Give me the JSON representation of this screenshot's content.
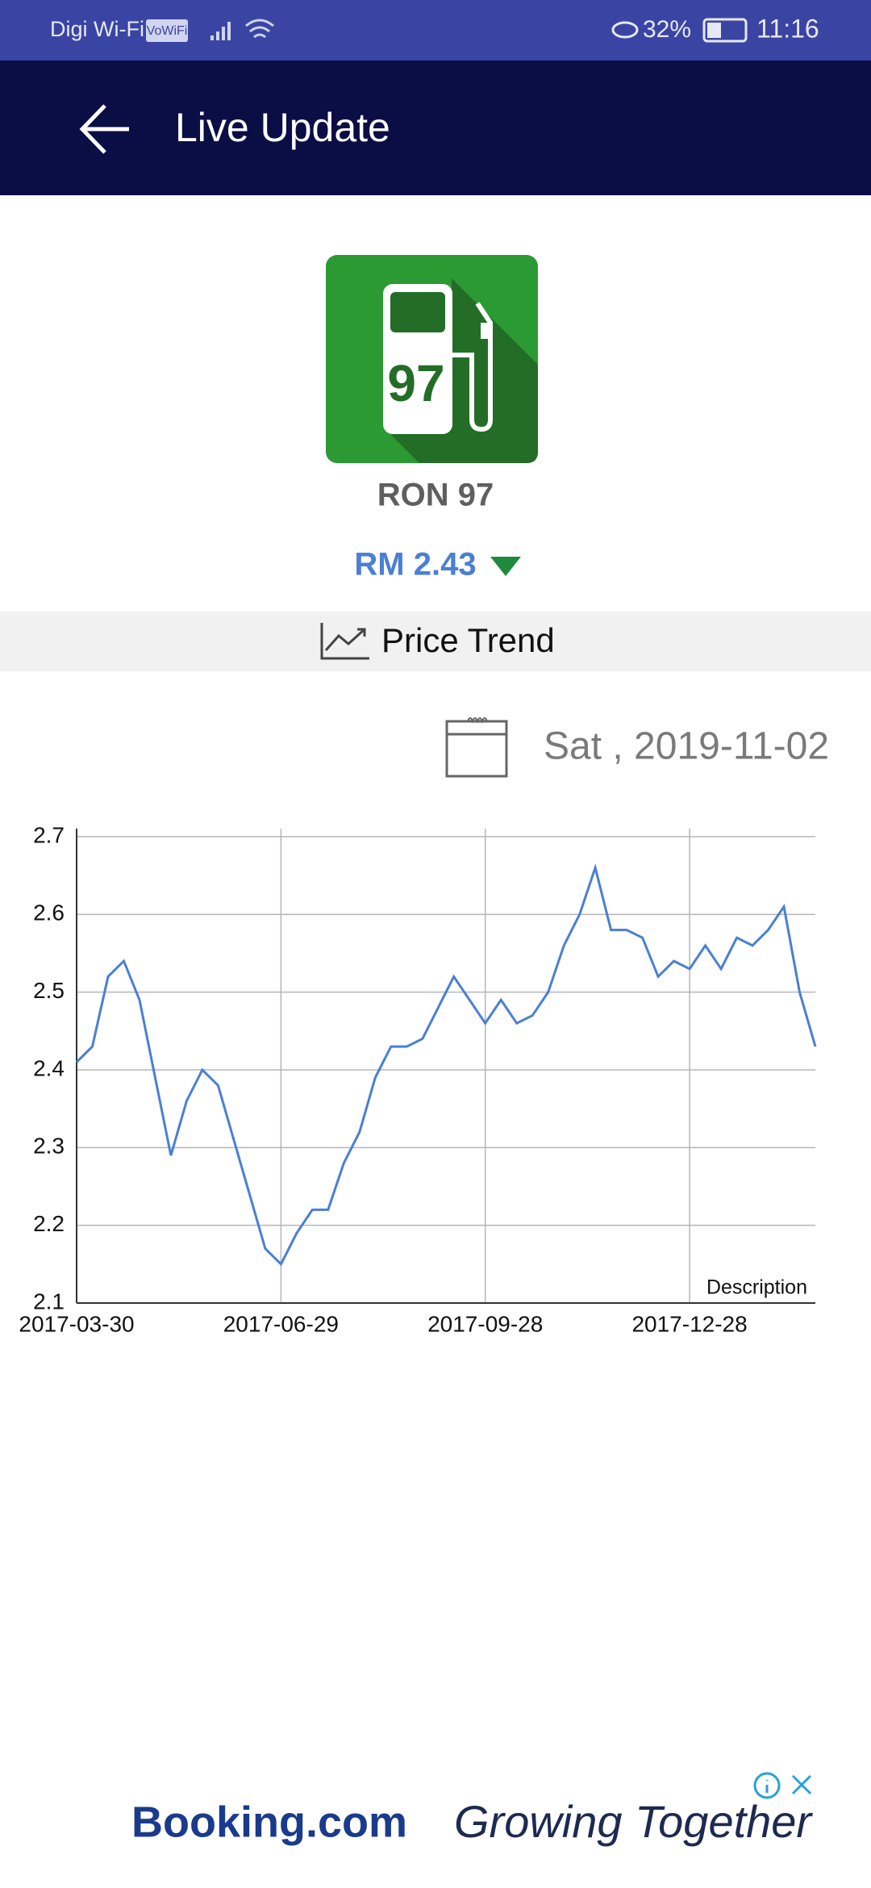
{
  "status_bar": {
    "carrier": "Digi Wi-Fi",
    "vowifi": "VoWiFi",
    "battery": "32%",
    "time": "11:16"
  },
  "app_bar": {
    "title": "Live Update"
  },
  "fuel": {
    "icon_label": "97",
    "name": "RON 97",
    "price": "RM 2.43"
  },
  "trend": {
    "label": "Price Trend",
    "date": "Sat , 2019-11-02"
  },
  "chart_data": {
    "type": "line",
    "description": "Description",
    "categories": [
      "2017-03-30",
      null,
      null,
      null,
      null,
      null,
      null,
      null,
      null,
      null,
      null,
      null,
      null,
      "2017-06-29",
      null,
      null,
      null,
      null,
      null,
      null,
      null,
      null,
      null,
      null,
      null,
      null,
      "2017-09-28",
      null,
      null,
      null,
      null,
      null,
      null,
      null,
      null,
      null,
      null,
      null,
      null,
      "2017-12-28",
      null,
      null,
      null,
      null,
      null,
      null,
      null,
      null
    ],
    "values": [
      2.41,
      2.43,
      2.52,
      2.54,
      2.49,
      2.39,
      2.29,
      2.36,
      2.4,
      2.38,
      2.31,
      2.24,
      2.17,
      2.15,
      2.19,
      2.22,
      2.22,
      2.28,
      2.32,
      2.39,
      2.43,
      2.43,
      2.44,
      2.48,
      2.52,
      2.49,
      2.46,
      2.49,
      2.46,
      2.47,
      2.5,
      2.56,
      2.6,
      2.66,
      2.58,
      2.58,
      2.57,
      2.52,
      2.54,
      2.53,
      2.56,
      2.53,
      2.57,
      2.56,
      2.58,
      2.61,
      2.5,
      2.43
    ],
    "color": "#4a7fd4",
    "ylim": [
      2.1,
      2.7
    ],
    "yticks": [
      2.1,
      2.2,
      2.3,
      2.4,
      2.5,
      2.6,
      2.7
    ],
    "grid": true
  },
  "ad": {
    "brand": "Booking.com",
    "slogan": "Growing Together"
  }
}
